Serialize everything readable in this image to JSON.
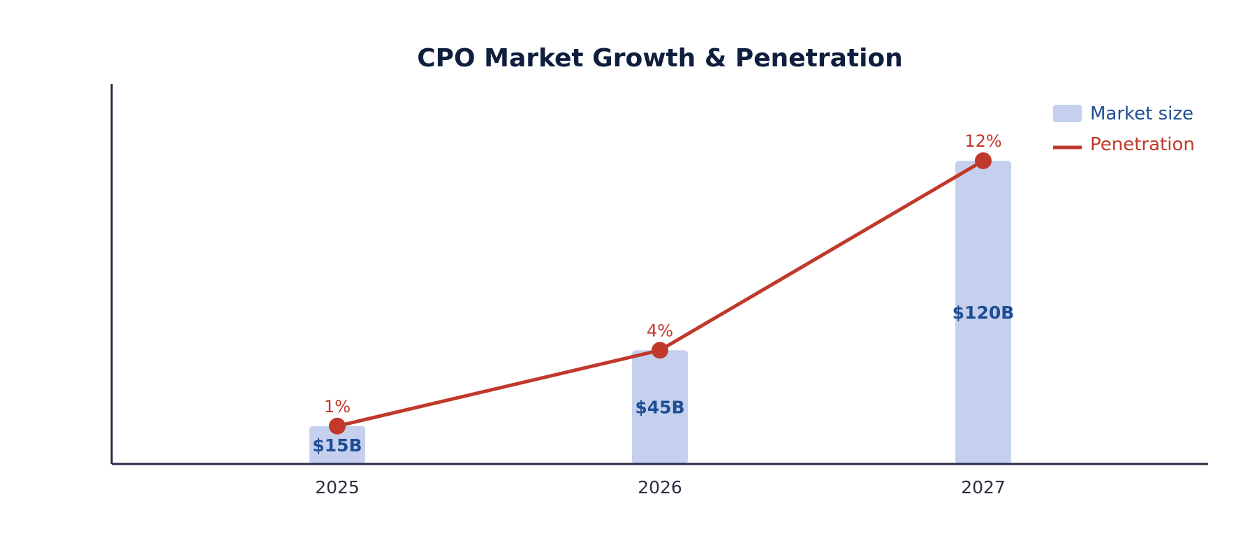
{
  "colors": {
    "title": "#0f1f3d",
    "axis": "#2a2a48",
    "bar": "#c5d0ee",
    "bar_label": "#1f4e94",
    "line": "#c0392b",
    "tick": "#2b2f3d"
  },
  "chart_data": {
    "type": "bar",
    "title": "CPO Market Growth & Penetration",
    "xlabel": "",
    "ylabel": "",
    "categories": [
      "2025",
      "2026",
      "2027"
    ],
    "series": [
      {
        "name": "Market size",
        "type": "bar",
        "values": [
          15,
          45,
          120
        ],
        "labels": [
          "$15B",
          "$45B",
          "$120B"
        ]
      },
      {
        "name": "Penetration",
        "type": "line",
        "values": [
          1,
          4,
          12
        ],
        "labels": [
          "1%",
          "4%",
          "12%"
        ]
      }
    ],
    "ylim_bars": [
      0,
      150
    ],
    "ylim_line": [
      0,
      14
    ],
    "grid": false,
    "legend_position": "top-right"
  }
}
